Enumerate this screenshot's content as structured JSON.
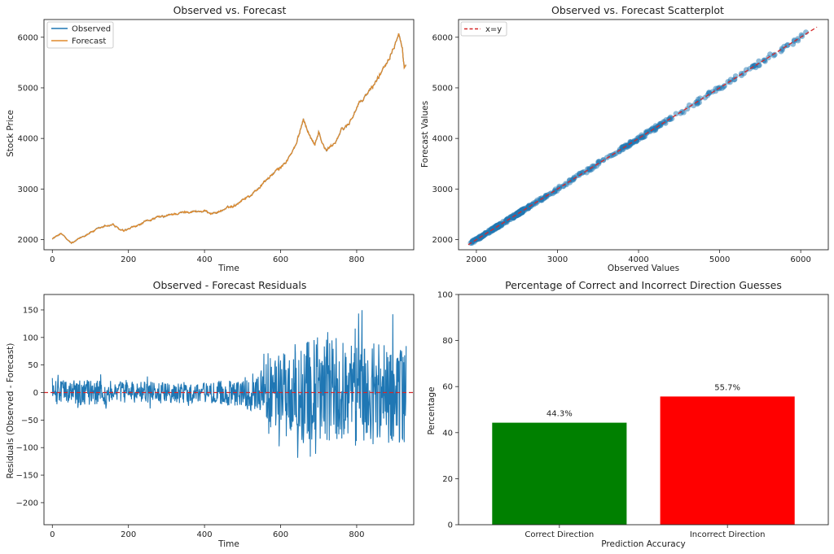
{
  "chart_data": [
    {
      "type": "line",
      "title": "Observed vs. Forecast",
      "xlabel": "Time",
      "ylabel": "Stock Price",
      "xlim": [
        -22,
        950
      ],
      "ylim": [
        1800,
        6350
      ],
      "xticks": [
        0,
        200,
        400,
        600,
        800
      ],
      "yticks": [
        2000,
        3000,
        4000,
        5000,
        6000
      ],
      "legend": "top-left",
      "anchors": {
        "x": [
          0,
          10,
          20,
          30,
          40,
          50,
          60,
          80,
          100,
          120,
          140,
          160,
          170,
          180,
          190,
          200,
          220,
          240,
          260,
          280,
          300,
          320,
          340,
          360,
          380,
          400,
          420,
          440,
          460,
          480,
          500,
          520,
          540,
          560,
          580,
          600,
          620,
          640,
          650,
          660,
          670,
          680,
          690,
          700,
          710,
          720,
          740,
          760,
          780,
          800,
          820,
          840,
          860,
          880,
          890,
          900,
          910,
          920,
          925,
          930
        ],
        "y": [
          2020,
          2060,
          2120,
          2080,
          1980,
          1930,
          1960,
          2060,
          2150,
          2200,
          2270,
          2300,
          2230,
          2180,
          2160,
          2200,
          2260,
          2330,
          2400,
          2440,
          2460,
          2510,
          2530,
          2560,
          2560,
          2560,
          2520,
          2560,
          2620,
          2680,
          2800,
          2870,
          3000,
          3160,
          3300,
          3420,
          3600,
          3850,
          4100,
          4400,
          4200,
          4000,
          3900,
          4150,
          3900,
          3750,
          3900,
          4150,
          4300,
          4600,
          4800,
          5000,
          5250,
          5550,
          5700,
          5900,
          6150,
          5800,
          5400,
          5450
        ]
      },
      "series": [
        {
          "name": "Observed",
          "color": "#1f77b4"
        },
        {
          "name": "Forecast",
          "color": "#e08a2c"
        }
      ]
    },
    {
      "type": "scatter",
      "title": "Observed vs. Forecast Scatterplot",
      "xlabel": "Observed Values",
      "ylabel": "Forecast Values",
      "xlim": [
        1780,
        6340
      ],
      "ylim": [
        1800,
        6350
      ],
      "xticks": [
        2000,
        3000,
        4000,
        5000,
        6000
      ],
      "yticks": [
        2000,
        3000,
        4000,
        5000,
        6000
      ],
      "reference_line": {
        "name": "x=y",
        "color": "#d62728",
        "style": "dashed"
      },
      "point_color": "#1f77b4",
      "legend": "top-left"
    },
    {
      "type": "line",
      "title": "Observed - Forecast Residuals",
      "xlabel": "Time",
      "ylabel": "Residuals (Observed - Forecast)",
      "xlim": [
        -22,
        950
      ],
      "ylim": [
        -240,
        178
      ],
      "xticks": [
        0,
        200,
        400,
        600,
        800
      ],
      "yticks": [
        -200,
        -150,
        -100,
        -50,
        0,
        50,
        100,
        150
      ],
      "zero_line_color": "#d62728",
      "series": [
        {
          "name": "",
          "color": "#1f77b4"
        }
      ],
      "amplitude_profile": {
        "x": [
          0,
          100,
          200,
          300,
          400,
          500,
          540,
          600,
          700,
          800,
          930
        ],
        "a": [
          24,
          26,
          22,
          22,
          20,
          30,
          45,
          90,
          110,
          110,
          100
        ]
      }
    },
    {
      "type": "bar",
      "title": "Percentage of Correct and Incorrect Direction Guesses",
      "xlabel": "Prediction Accuracy",
      "ylabel": "Percentage",
      "ylim": [
        0,
        100
      ],
      "yticks": [
        0,
        20,
        40,
        60,
        80,
        100
      ],
      "categories": [
        "Correct Direction",
        "Incorrect Direction"
      ],
      "values": [
        44.3,
        55.7
      ],
      "value_labels": [
        "44.3%",
        "55.7%"
      ],
      "colors": [
        "#008000",
        "#ff0000"
      ]
    }
  ]
}
